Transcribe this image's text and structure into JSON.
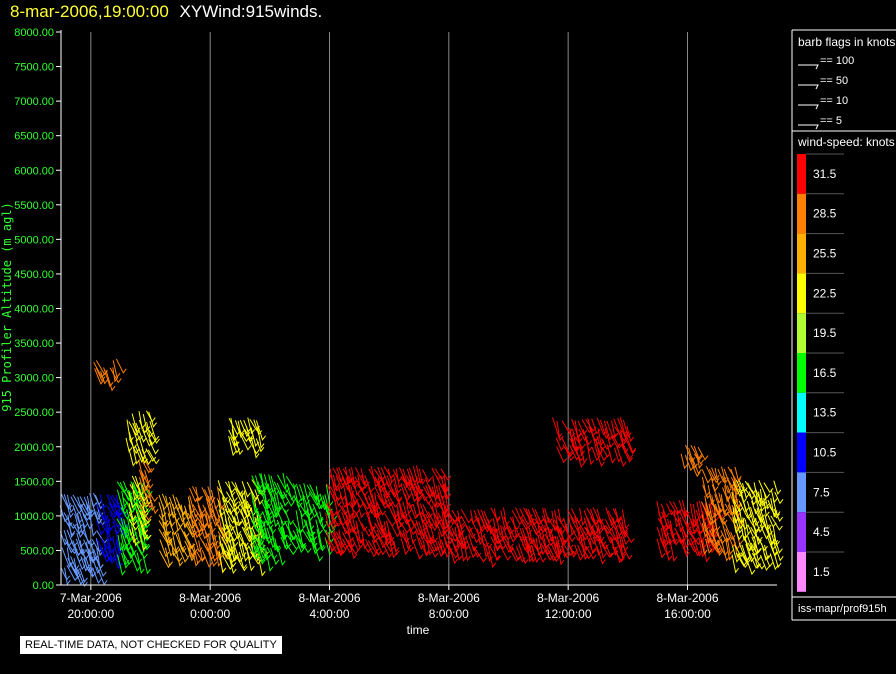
{
  "header": {
    "date_time": "8-mar-2006,19:00:00",
    "product": "XYWind:915winds."
  },
  "chart_data": {
    "type": "scatter",
    "title": "XYWind:915winds.",
    "xlabel": "time",
    "ylabel": "915 Profiler Altitude (m agl)",
    "ylim": [
      0,
      8000
    ],
    "yticks": [
      "0.00",
      "500.00",
      "1000.00",
      "1500.00",
      "2000.00",
      "2500.00",
      "3000.00",
      "3500.00",
      "4000.00",
      "4500.00",
      "5000.00",
      "5500.00",
      "6000.00",
      "6500.00",
      "7000.00",
      "7500.00",
      "8000.00"
    ],
    "xticks": [
      {
        "hours": 20,
        "date": "7-Mar-2006",
        "time": "20:00:00"
      },
      {
        "hours": 24,
        "date": "8-Mar-2006",
        "time": "0:00:00"
      },
      {
        "hours": 28,
        "date": "8-Mar-2006",
        "time": "4:00:00"
      },
      {
        "hours": 32,
        "date": "8-Mar-2006",
        "time": "8:00:00"
      },
      {
        "hours": 36,
        "date": "8-Mar-2006",
        "time": "12:00:00"
      },
      {
        "hours": 40,
        "date": "8-Mar-2006",
        "time": "16:00:00"
      }
    ],
    "xlim_hours": [
      19.0,
      43.0
    ],
    "grid": "vertical",
    "barb_clusters": [
      {
        "t0": 19.0,
        "t1": 20.2,
        "a0": 200,
        "a1": 1300,
        "speed": 7.5
      },
      {
        "t0": 20.2,
        "t1": 21.0,
        "a0": 400,
        "a1": 1300,
        "speed": 10.5
      },
      {
        "t0": 20.9,
        "t1": 21.8,
        "a0": 450,
        "a1": 1500,
        "speed": 16.5
      },
      {
        "t0": 21.3,
        "t1": 21.8,
        "a0": 700,
        "a1": 1600,
        "speed": 22.5
      },
      {
        "t0": 21.6,
        "t1": 22.0,
        "a0": 1100,
        "a1": 1800,
        "speed": 28.5
      },
      {
        "t0": 21.2,
        "t1": 22.0,
        "a0": 1900,
        "a1": 2500,
        "speed": 22.5
      },
      {
        "t0": 20.1,
        "t1": 20.9,
        "a0": 3100,
        "a1": 3250,
        "speed": 28.5
      },
      {
        "t0": 22.3,
        "t1": 23.3,
        "a0": 450,
        "a1": 1300,
        "speed": 25.5
      },
      {
        "t0": 23.3,
        "t1": 24.3,
        "a0": 450,
        "a1": 1400,
        "speed": 28.5
      },
      {
        "t0": 24.3,
        "t1": 25.6,
        "a0": 450,
        "a1": 1500,
        "speed": 22.5
      },
      {
        "t0": 25.4,
        "t1": 26.6,
        "a0": 450,
        "a1": 1600,
        "speed": 16.5
      },
      {
        "t0": 24.6,
        "t1": 25.6,
        "a0": 2050,
        "a1": 2400,
        "speed": 22.5
      },
      {
        "t0": 26.8,
        "t1": 27.9,
        "a0": 550,
        "a1": 1450,
        "speed": 16.5
      },
      {
        "t0": 27.9,
        "t1": 31.9,
        "a0": 550,
        "a1": 1700,
        "speed": 31.5
      },
      {
        "t0": 31.9,
        "t1": 37.8,
        "a0": 550,
        "a1": 1100,
        "speed": 31.5
      },
      {
        "t0": 35.5,
        "t1": 38.0,
        "a0": 1900,
        "a1": 2400,
        "speed": 31.5
      },
      {
        "t0": 39.0,
        "t1": 40.9,
        "a0": 550,
        "a1": 1200,
        "speed": 31.5
      },
      {
        "t0": 40.5,
        "t1": 41.6,
        "a0": 550,
        "a1": 1700,
        "speed": 28.5
      },
      {
        "t0": 41.5,
        "t1": 42.9,
        "a0": 400,
        "a1": 1500,
        "speed": 22.5
      },
      {
        "t0": 39.8,
        "t1": 40.4,
        "a0": 1800,
        "a1": 2000,
        "speed": 28.5
      }
    ]
  },
  "barb_legend": {
    "title": "barb flags in knots",
    "items": [
      "== 100",
      "== 50",
      "== 10",
      "== 5"
    ]
  },
  "speed_legend": {
    "title": "wind-speed: knots",
    "bins": [
      {
        "label": "31.5",
        "color": "#ff0000"
      },
      {
        "label": "28.5",
        "color": "#ff8000"
      },
      {
        "label": "25.5",
        "color": "#ffb000"
      },
      {
        "label": "22.5",
        "color": "#ffff00"
      },
      {
        "label": "19.5",
        "color": "#b0ff30"
      },
      {
        "label": "16.5",
        "color": "#00ff00"
      },
      {
        "label": "13.5",
        "color": "#00ffff"
      },
      {
        "label": "10.5",
        "color": "#0000ff"
      },
      {
        "label": "7.5",
        "color": "#6699ff"
      },
      {
        "label": "4.5",
        "color": "#9933ff"
      },
      {
        "label": "1.5",
        "color": "#ff88ff"
      }
    ]
  },
  "footer": {
    "qc_notice": "REAL-TIME DATA, NOT CHECKED FOR QUALITY",
    "product_path": "iss-mapr/prof915h"
  }
}
